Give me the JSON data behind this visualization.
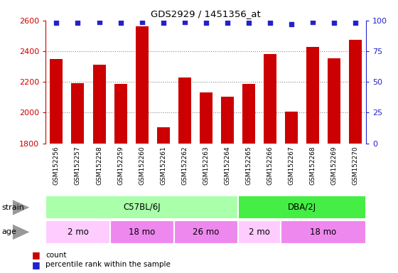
{
  "title": "GDS2929 / 1451356_at",
  "samples": [
    "GSM152256",
    "GSM152257",
    "GSM152258",
    "GSM152259",
    "GSM152260",
    "GSM152261",
    "GSM152262",
    "GSM152263",
    "GSM152264",
    "GSM152265",
    "GSM152266",
    "GSM152267",
    "GSM152268",
    "GSM152269",
    "GSM152270"
  ],
  "counts": [
    2350,
    2190,
    2310,
    2185,
    2560,
    1905,
    2230,
    2130,
    2105,
    2185,
    2380,
    2005,
    2430,
    2355,
    2475
  ],
  "percentile_ranks": [
    98,
    98,
    99,
    98,
    99,
    98,
    99,
    98,
    98,
    98,
    98,
    97,
    99,
    98,
    98
  ],
  "bar_color": "#cc0000",
  "dot_color": "#2222cc",
  "ylim_left": [
    1800,
    2600
  ],
  "ylim_right": [
    0,
    100
  ],
  "yticks_left": [
    1800,
    2000,
    2200,
    2400,
    2600
  ],
  "yticks_right": [
    0,
    25,
    50,
    75,
    100
  ],
  "strain_groups": [
    {
      "label": "C57BL/6J",
      "start": 0,
      "end": 9,
      "color": "#aaffaa"
    },
    {
      "label": "DBA/2J",
      "start": 9,
      "end": 15,
      "color": "#44ee44"
    }
  ],
  "age_groups": [
    {
      "label": "2 mo",
      "start": 0,
      "end": 3,
      "color": "#ffccff"
    },
    {
      "label": "18 mo",
      "start": 3,
      "end": 6,
      "color": "#ee88ee"
    },
    {
      "label": "26 mo",
      "start": 6,
      "end": 9,
      "color": "#ee88ee"
    },
    {
      "label": "2 mo",
      "start": 9,
      "end": 11,
      "color": "#ffccff"
    },
    {
      "label": "18 mo",
      "start": 11,
      "end": 15,
      "color": "#ee88ee"
    }
  ],
  "axis_color_left": "#cc0000",
  "axis_color_right": "#2222cc",
  "tick_label_bg": "#dddddd",
  "grid_linestyle": "dotted",
  "grid_color": "#888888",
  "bar_bottom": 1800
}
